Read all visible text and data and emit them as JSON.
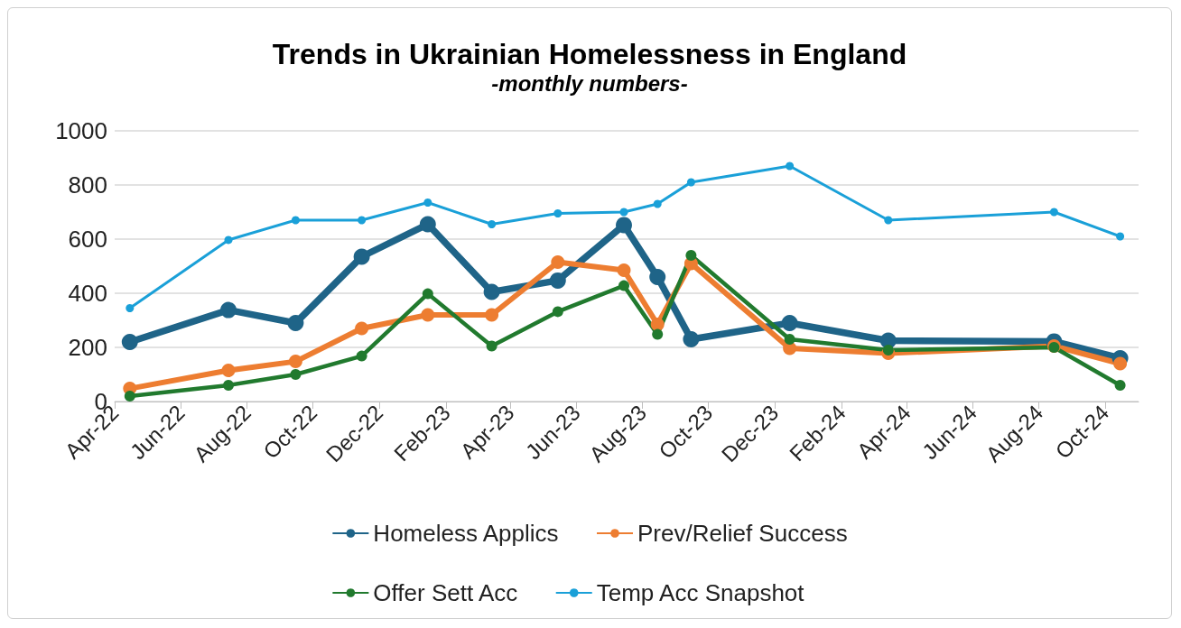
{
  "chart_data": {
    "type": "line",
    "title": "Trends in Ukrainian Homelessness in England",
    "subtitle": "-monthly numbers-",
    "x": [
      "2022-04-15",
      "2022-07-15",
      "2022-09-15",
      "2022-11-15",
      "2023-01-15",
      "2023-03-15",
      "2023-05-15",
      "2023-07-15",
      "2023-08-15",
      "2023-09-15",
      "2023-12-15",
      "2024-03-15",
      "2024-08-15",
      "2024-10-15"
    ],
    "series": [
      {
        "name": "Homeless Applics",
        "color": "#1f6488",
        "values": [
          220,
          338,
          290,
          535,
          655,
          405,
          447,
          652,
          460,
          230,
          290,
          225,
          222,
          160
        ]
      },
      {
        "name": "Prev/Relief Success",
        "color": "#ed7d31",
        "values": [
          48,
          115,
          148,
          270,
          320,
          320,
          515,
          485,
          285,
          510,
          197,
          178,
          205,
          140
        ]
      },
      {
        "name": "Offer Sett Acc",
        "color": "#217a2e",
        "values": [
          20,
          60,
          100,
          168,
          398,
          205,
          332,
          428,
          248,
          540,
          230,
          190,
          200,
          60
        ]
      },
      {
        "name": "Temp Acc Snapshot",
        "color": "#1aa0d8",
        "values": [
          345,
          597,
          670,
          670,
          735,
          655,
          695,
          700,
          730,
          810,
          870,
          670,
          700,
          610
        ]
      }
    ],
    "xlim": [
      "2022-04-01",
      "2024-11-01"
    ],
    "xticks": [
      {
        "value": "2022-04-01",
        "label": "Apr-22"
      },
      {
        "value": "2022-06-01",
        "label": "Jun-22"
      },
      {
        "value": "2022-08-01",
        "label": "Aug-22"
      },
      {
        "value": "2022-10-01",
        "label": "Oct-22"
      },
      {
        "value": "2022-12-01",
        "label": "Dec-22"
      },
      {
        "value": "2023-02-01",
        "label": "Feb-23"
      },
      {
        "value": "2023-04-01",
        "label": "Apr-23"
      },
      {
        "value": "2023-06-01",
        "label": "Jun-23"
      },
      {
        "value": "2023-08-01",
        "label": "Aug-23"
      },
      {
        "value": "2023-10-01",
        "label": "Oct-23"
      },
      {
        "value": "2023-12-01",
        "label": "Dec-23"
      },
      {
        "value": "2024-02-01",
        "label": "Feb-24"
      },
      {
        "value": "2024-04-01",
        "label": "Apr-24"
      },
      {
        "value": "2024-06-01",
        "label": "Jun-24"
      },
      {
        "value": "2024-08-01",
        "label": "Aug-24"
      },
      {
        "value": "2024-10-01",
        "label": "Oct-24"
      }
    ],
    "ylim": [
      0,
      1000
    ],
    "yticks": [
      0,
      200,
      400,
      600,
      800,
      1000
    ],
    "grid": "y",
    "legend": "bottom",
    "marker": "circle",
    "line_style": "solid"
  }
}
